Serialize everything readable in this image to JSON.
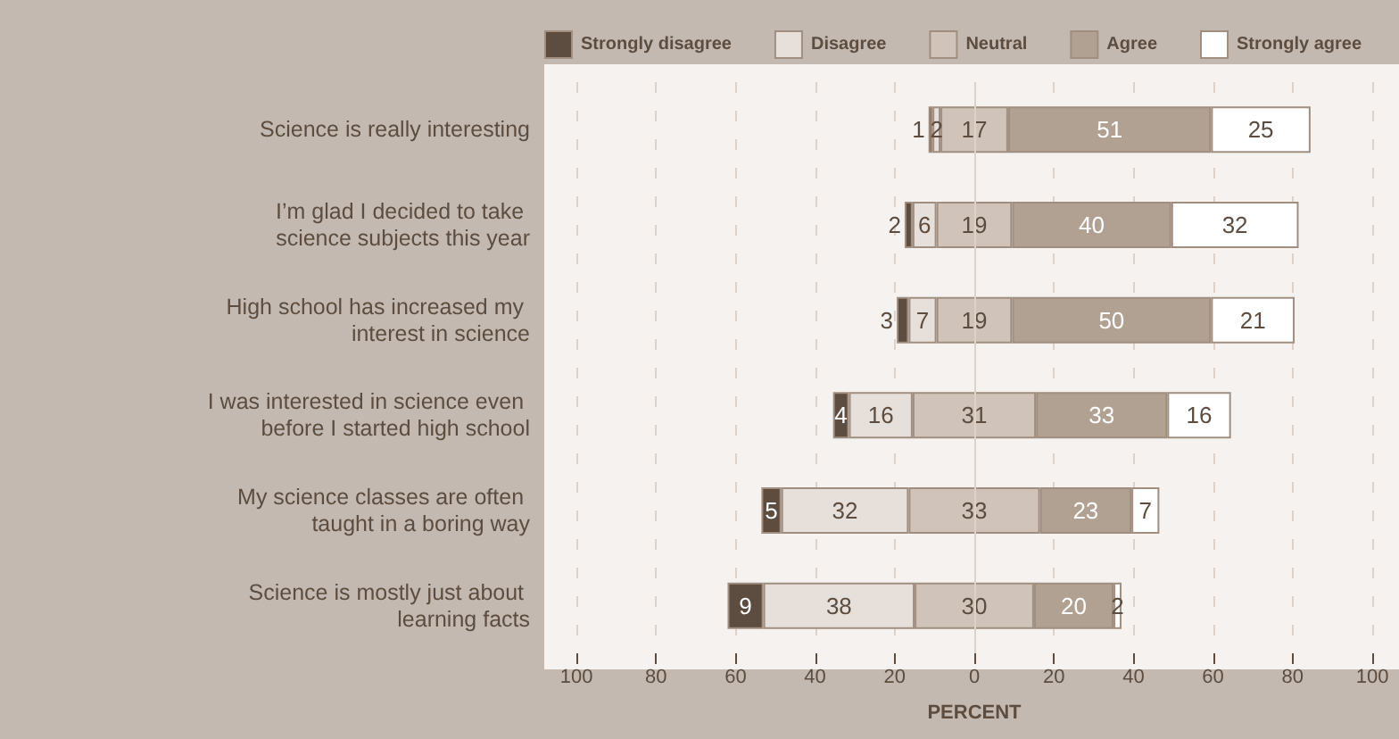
{
  "chart_data": {
    "type": "bar",
    "orientation": "horizontal",
    "xlabel": "PERCENT",
    "categories": [
      "Science is really interesting",
      "I’m glad I decided to take science subjects this year",
      "High school has increased my interest in science",
      "I was interested in science even before I started high school",
      "My science classes are often taught in a boring way",
      "Science is mostly just about learning facts"
    ],
    "series": [
      {
        "name": "Strongly disagree",
        "color": "#5c4d40",
        "values": [
          1,
          2,
          3,
          4,
          5,
          9
        ],
        "base": [
          -11.5,
          -17.5,
          -19.5,
          -35.5,
          -53.5,
          -62
        ]
      },
      {
        "name": "Disagree",
        "color": "#e6dfda",
        "values": [
          2,
          6,
          7,
          16,
          32,
          38
        ],
        "base": [
          -10.5,
          -15.5,
          -16.5,
          -31.5,
          -48.5,
          -53
        ]
      },
      {
        "name": "Neutral",
        "color": "#cfc3ba",
        "values": [
          17,
          19,
          19,
          31,
          33,
          30
        ],
        "base": [
          -8.5,
          -9.5,
          -9.5,
          -15.5,
          -16.5,
          -15
        ]
      },
      {
        "name": "Agree",
        "color": "#b1a192",
        "values": [
          51,
          40,
          50,
          33,
          23,
          20
        ],
        "base": [
          8.5,
          9.5,
          9.5,
          15.5,
          16.5,
          15
        ]
      },
      {
        "name": "Strongly agree",
        "color": "#ffffff",
        "values": [
          25,
          32,
          21,
          16,
          7,
          2
        ],
        "base": [
          59.5,
          49.5,
          59.5,
          48.5,
          39.5,
          35
        ]
      }
    ],
    "xlim": [
      -100,
      100
    ],
    "xticks": [
      {
        "value": -100,
        "label": "100"
      },
      {
        "value": -80,
        "label": "80"
      },
      {
        "value": -60,
        "label": "60"
      },
      {
        "value": -40,
        "label": "40"
      },
      {
        "value": -20,
        "label": "20"
      },
      0,
      20,
      40,
      60,
      80,
      100
    ],
    "ref_lines": [
      {
        "axis": "x",
        "value": 0,
        "line_style": "solid"
      }
    ],
    "grid": "x",
    "legend": "top",
    "data_labels": true
  }
}
